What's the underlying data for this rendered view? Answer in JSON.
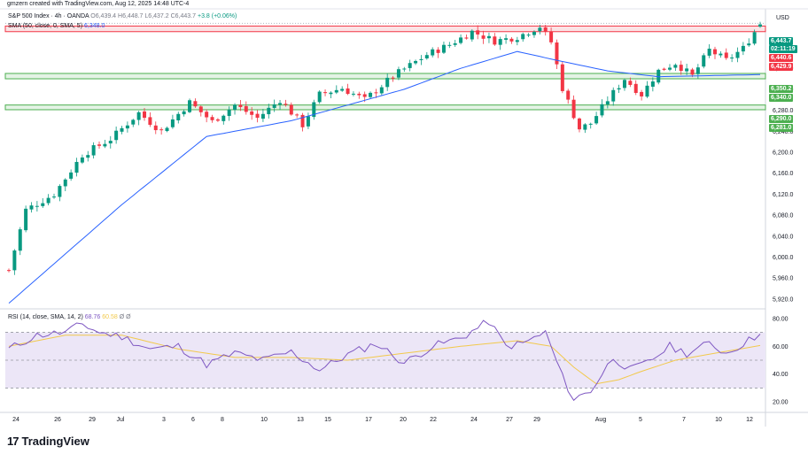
{
  "header": {
    "created_by": "gmzern created with TradingView.com, Aug 12, 2025 14:48 UTC-4",
    "symbol": "S&P 500 Index · 4h · OANDA",
    "open": "O6,439.4",
    "high": "H6,448.7",
    "low": "L6,437.2",
    "close": "C6,443.7",
    "change": "+3.8 (+0.06%)",
    "sma_label": "SMA (50, close, 0, SMA, 5)",
    "sma_value": "6,348.0",
    "rsi_label": "RSI (14, close, SMA, 14, 2)",
    "rsi_value": "68.76",
    "rsi_sma_value": "60.58",
    "rsi_extra_1": "Ø",
    "rsi_extra_2": "Ø"
  },
  "currency": "USD",
  "price_tags": {
    "last_price": "6,443.7",
    "countdown": "02:11:19",
    "resistance_high": "6,440.6",
    "resistance_low": "6,429.9",
    "mid_high": "6,350.2",
    "mid_low": "6,340.0",
    "support_high": "6,290.0",
    "support_low": "6,281.0"
  },
  "brand": {
    "name": "TradingView",
    "logo": "17"
  },
  "colors": {
    "up": "#089981",
    "down": "#f23645",
    "sma": "#2962ff",
    "rsi": "#7e57c2",
    "rsi_sma": "#f2c94c",
    "zone_red": "#f23645",
    "zone_green": "#4caf50"
  },
  "chart_data": [
    {
      "type": "candlestick",
      "title": "S&P 500 Index 4h",
      "y_axis_ticks": [
        5920,
        5960,
        6000,
        6040,
        6080,
        6120,
        6160,
        6200,
        6240,
        6280,
        6320,
        6360,
        6400
      ],
      "y_axis_labels": [
        "5,920.0",
        "5,960.0",
        "6,000.0",
        "6,040.0",
        "6,080.0",
        "6,120.0",
        "6,160.0",
        "6,200.0",
        "6,240.0",
        "6,280.0",
        "6,320.0",
        "6,360.0",
        "6,400.0"
      ],
      "ylim": [
        5908,
        6470
      ],
      "x_tick_labels": [
        "24",
        "26",
        "29",
        "Jul",
        "3",
        "6",
        "8",
        "10",
        "13",
        "15",
        "17",
        "20",
        "22",
        "24",
        "27",
        "29",
        "Aug",
        "5",
        "7",
        "10",
        "12"
      ],
      "zones": [
        {
          "name": "resistance",
          "from": 6429.9,
          "to": 6440.6
        },
        {
          "name": "mid-support",
          "from": 6340.0,
          "to": 6350.2
        },
        {
          "name": "support",
          "from": 6281.0,
          "to": 6290.0
        }
      ],
      "path_anchors": [
        [
          0,
          5975
        ],
        [
          3,
          6090
        ],
        [
          8,
          6120
        ],
        [
          13,
          6195
        ],
        [
          18,
          6225
        ],
        [
          23,
          6275
        ],
        [
          27,
          6240
        ],
        [
          32,
          6295
        ],
        [
          36,
          6258
        ],
        [
          40,
          6290
        ],
        [
          44,
          6265
        ],
        [
          48,
          6300
        ],
        [
          52,
          6252
        ],
        [
          55,
          6310
        ],
        [
          59,
          6322
        ],
        [
          63,
          6300
        ],
        [
          68,
          6345
        ],
        [
          74,
          6386
        ],
        [
          78,
          6405
        ],
        [
          82,
          6430
        ],
        [
          86,
          6412
        ],
        [
          90,
          6420
        ],
        [
          94,
          6440
        ],
        [
          96,
          6410
        ],
        [
          98,
          6322
        ],
        [
          101,
          6245
        ],
        [
          103,
          6255
        ],
        [
          106,
          6300
        ],
        [
          109,
          6340
        ],
        [
          112,
          6310
        ],
        [
          115,
          6355
        ],
        [
          118,
          6370
        ],
        [
          121,
          6345
        ],
        [
          124,
          6395
        ],
        [
          127,
          6375
        ],
        [
          130,
          6398
        ],
        [
          133,
          6445
        ]
      ],
      "candle_count": 134,
      "last": {
        "open": 6439.4,
        "high": 6448.7,
        "low": 6437.2,
        "close": 6443.7
      },
      "sma50_anchors": [
        [
          0,
          5912
        ],
        [
          20,
          6100
        ],
        [
          35,
          6230
        ],
        [
          50,
          6260
        ],
        [
          60,
          6290
        ],
        [
          70,
          6320
        ],
        [
          80,
          6360
        ],
        [
          90,
          6392
        ],
        [
          98,
          6373
        ],
        [
          106,
          6355
        ],
        [
          115,
          6344
        ],
        [
          124,
          6346
        ],
        [
          133,
          6348
        ]
      ]
    },
    {
      "type": "line",
      "title": "RSI (14, close, SMA, 14, 2)",
      "y_axis_ticks": [
        20,
        40,
        60,
        80
      ],
      "y_axis_labels": [
        "20.00",
        "40.00",
        "60.00",
        "80.00"
      ],
      "ylim": [
        15,
        85
      ],
      "bands": [
        30,
        50,
        70
      ],
      "rsi_anchors": [
        [
          0,
          58
        ],
        [
          5,
          68
        ],
        [
          10,
          70
        ],
        [
          13,
          76
        ],
        [
          16,
          70
        ],
        [
          20,
          67
        ],
        [
          25,
          58
        ],
        [
          30,
          60
        ],
        [
          35,
          47
        ],
        [
          40,
          55
        ],
        [
          45,
          50
        ],
        [
          50,
          56
        ],
        [
          55,
          43
        ],
        [
          60,
          54
        ],
        [
          65,
          62
        ],
        [
          70,
          48
        ],
        [
          75,
          60
        ],
        [
          80,
          66
        ],
        [
          85,
          78
        ],
        [
          88,
          60
        ],
        [
          91,
          62
        ],
        [
          95,
          70
        ],
        [
          98,
          38
        ],
        [
          100,
          22
        ],
        [
          103,
          28
        ],
        [
          107,
          52
        ],
        [
          110,
          43
        ],
        [
          113,
          48
        ],
        [
          117,
          60
        ],
        [
          120,
          55
        ],
        [
          124,
          62
        ],
        [
          127,
          55
        ],
        [
          130,
          62
        ],
        [
          133,
          68.76
        ]
      ],
      "rsi_sma_anchors": [
        [
          0,
          60
        ],
        [
          10,
          68
        ],
        [
          20,
          68
        ],
        [
          30,
          58
        ],
        [
          40,
          52
        ],
        [
          50,
          52
        ],
        [
          60,
          50
        ],
        [
          70,
          55
        ],
        [
          80,
          60
        ],
        [
          90,
          64
        ],
        [
          96,
          60
        ],
        [
          100,
          45
        ],
        [
          104,
          33
        ],
        [
          108,
          36
        ],
        [
          112,
          42
        ],
        [
          118,
          50
        ],
        [
          125,
          55
        ],
        [
          133,
          60.58
        ]
      ]
    }
  ]
}
